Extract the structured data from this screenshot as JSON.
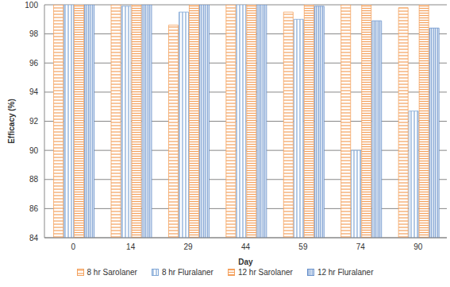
{
  "chart_data": {
    "type": "bar",
    "x_label": "Day",
    "y_label": "Efficacy (%)",
    "categories": [
      "0",
      "14",
      "29",
      "44",
      "59",
      "74",
      "90"
    ],
    "series": [
      {
        "name": "8 hr Sarolaner",
        "color": "#f4a15d",
        "values": [
          100,
          100,
          98.6,
          100,
          99.5,
          100,
          99.8
        ]
      },
      {
        "name": "8 hr Fluralaner",
        "color": "#7fa6d6",
        "values": [
          100,
          99.9,
          99.5,
          100,
          99.0,
          90.0,
          92.7
        ]
      },
      {
        "name": "12 hr Sarolaner",
        "color": "#f4a15d",
        "values": [
          100,
          100,
          100,
          100,
          100,
          100,
          100
        ]
      },
      {
        "name": "12 hr Fluralaner",
        "color": "#6b93cc",
        "values": [
          100,
          100,
          100,
          100,
          99.9,
          98.9,
          98.4
        ]
      }
    ],
    "ylim": [
      84,
      100
    ],
    "yticks": [
      84,
      86,
      88,
      90,
      92,
      94,
      96,
      98,
      100
    ],
    "grid": true,
    "legend": "bottom"
  }
}
